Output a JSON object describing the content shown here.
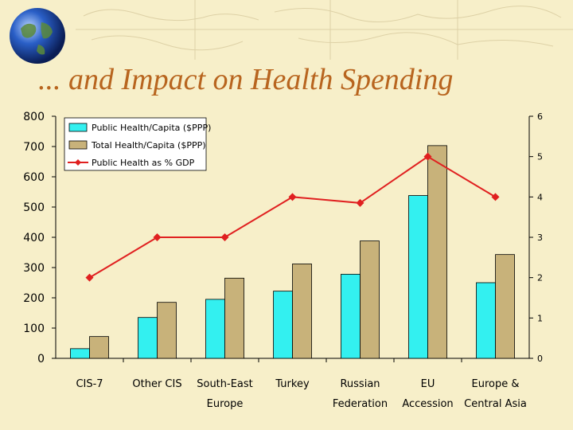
{
  "title": "... and Impact on Health Spending",
  "colors": {
    "background": "#f7efc9",
    "title": "#b8651f",
    "public_bar": "#33f0f0",
    "total_bar": "#c8b27a",
    "line": "#e02020"
  },
  "chart_data": {
    "type": "bar",
    "categories": [
      [
        "CIS-7"
      ],
      [
        "Other CIS"
      ],
      [
        "South-East",
        "Europe"
      ],
      [
        "Turkey"
      ],
      [
        "Russian",
        "Federation"
      ],
      [
        "EU",
        "Accession"
      ],
      [
        "Europe &",
        "Central Asia"
      ]
    ],
    "series": [
      {
        "name": "Public Health/Capita ($PPP)",
        "kind": "bar",
        "axis": "left",
        "values": [
          32,
          135,
          195,
          222,
          278,
          538,
          250
        ]
      },
      {
        "name": "Total Health/Capita ($PPP)",
        "kind": "bar",
        "axis": "left",
        "values": [
          72,
          185,
          265,
          312,
          388,
          703,
          343
        ]
      },
      {
        "name": "Public Health as % GDP",
        "kind": "line",
        "axis": "right",
        "values": [
          2,
          3,
          3,
          4,
          3.85,
          5,
          4
        ]
      }
    ],
    "ylim_left": [
      0,
      800
    ],
    "yticks_left": [
      "0",
      "100",
      "200",
      "300",
      "400",
      "500",
      "600",
      "700",
      "800"
    ],
    "ylim_right": [
      0,
      6
    ],
    "yticks_right": [
      "0",
      "1",
      "2",
      "3",
      "4",
      "5",
      "6"
    ],
    "legend": "top-left",
    "grid": false
  }
}
